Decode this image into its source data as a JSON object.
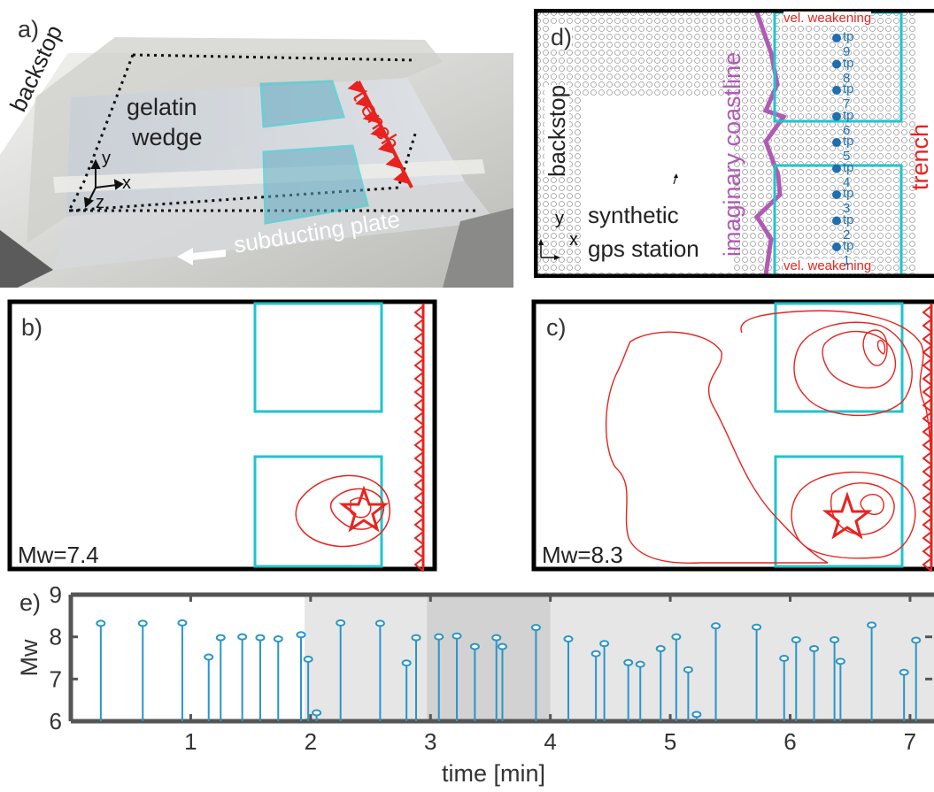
{
  "panel_a": {
    "label": "a)",
    "backstop": "backstop",
    "gelatin": "gelatin",
    "wedge": "wedge",
    "trench": "trench",
    "subducting_plate": "subducting plate",
    "axis_x": "x",
    "axis_y": "y",
    "axis_z": "z"
  },
  "panel_b": {
    "label": "b)",
    "magnitude": "Mw=7.4"
  },
  "panel_c": {
    "label": "c)",
    "magnitude": "Mw=8.3"
  },
  "panel_d": {
    "label": "d)",
    "backstop": "backstop",
    "synthetic": "synthetic",
    "gps_station": "gps station",
    "coastline": "imaginary coastline",
    "trench": "trench",
    "vel_weakening_top": "vel. weakening",
    "vel_weakening_bottom": "vel. weakening",
    "axis_x": "x",
    "axis_y": "y",
    "tp_labels": [
      "tp 9",
      "tp 8",
      "tp 7",
      "tp 6",
      "tp 5",
      "tp 4",
      "tp 3",
      "tp 2",
      "tp 1"
    ]
  },
  "colors": {
    "cyan": "#1fc4cc",
    "red": "#e8231f",
    "magenta": "#b05ab5",
    "stem_blue": "#2a95c8",
    "tp_blue": "#1f6fb0",
    "shade_light": "#e6e6e6",
    "shade_dark": "#d2d2d2"
  },
  "chart_data": {
    "type": "stem",
    "panel_label": "e)",
    "xlabel": "time [min]",
    "ylabel": "Mw",
    "xlim": [
      0,
      7.2
    ],
    "ylim": [
      6,
      9
    ],
    "xticks": [
      1,
      2,
      3,
      4,
      5,
      6,
      7
    ],
    "yticks": [
      6,
      7,
      8,
      9
    ],
    "shaded_intervals": [
      {
        "x0": 1.95,
        "x1": 7.2,
        "shade": "light"
      },
      {
        "x0": 2.97,
        "x1": 4.0,
        "shade": "dark"
      }
    ],
    "x": [
      0.25,
      0.6,
      0.93,
      1.15,
      1.25,
      1.43,
      1.58,
      1.73,
      1.92,
      1.98,
      2.05,
      2.25,
      2.58,
      2.8,
      2.88,
      3.07,
      3.22,
      3.37,
      3.55,
      3.6,
      3.88,
      4.15,
      4.38,
      4.45,
      4.65,
      4.75,
      4.92,
      5.05,
      5.15,
      5.22,
      5.38,
      5.72,
      5.95,
      6.05,
      6.2,
      6.37,
      6.42,
      6.68,
      6.95,
      7.05
    ],
    "y": [
      8.32,
      8.32,
      8.33,
      7.52,
      7.98,
      8.0,
      7.98,
      7.95,
      8.05,
      7.47,
      6.2,
      8.33,
      8.32,
      7.38,
      7.98,
      8.0,
      8.02,
      7.77,
      7.98,
      7.77,
      8.22,
      7.95,
      7.6,
      7.84,
      7.39,
      7.35,
      7.72,
      8.0,
      7.22,
      6.16,
      8.26,
      8.23,
      7.49,
      7.93,
      7.72,
      7.93,
      7.42,
      8.28,
      7.16,
      7.92
    ]
  }
}
